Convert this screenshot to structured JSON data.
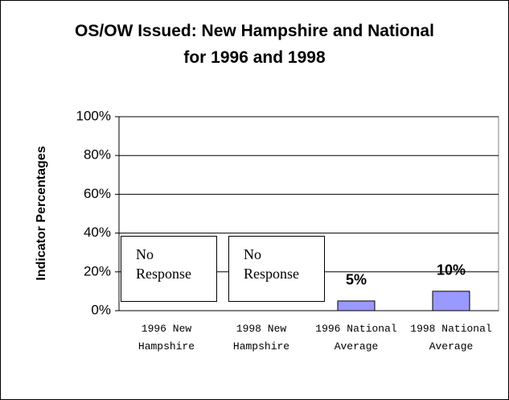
{
  "chart_data": {
    "type": "bar",
    "title": "OS/OW Issued: New Hampshire and National for 1996 and 1998",
    "y_label": "Indicator Percentages",
    "categories": [
      "1996 New Hampshire",
      "1998 New Hampshire",
      "1996 National Average",
      "1998 National Average"
    ],
    "values": [
      null,
      null,
      5,
      10
    ],
    "value_labels": [
      "No Response",
      "No Response",
      "5%",
      "10%"
    ],
    "color": "#9999ff",
    "ylim": [
      0,
      100
    ],
    "yticks": [
      {
        "value": 0,
        "label": "0%"
      },
      {
        "value": 20,
        "label": "20%"
      },
      {
        "value": 40,
        "label": "40%"
      },
      {
        "value": 60,
        "label": "60%"
      },
      {
        "value": 80,
        "label": "80%"
      },
      {
        "value": 100,
        "label": "100%"
      }
    ],
    "grid": true
  }
}
